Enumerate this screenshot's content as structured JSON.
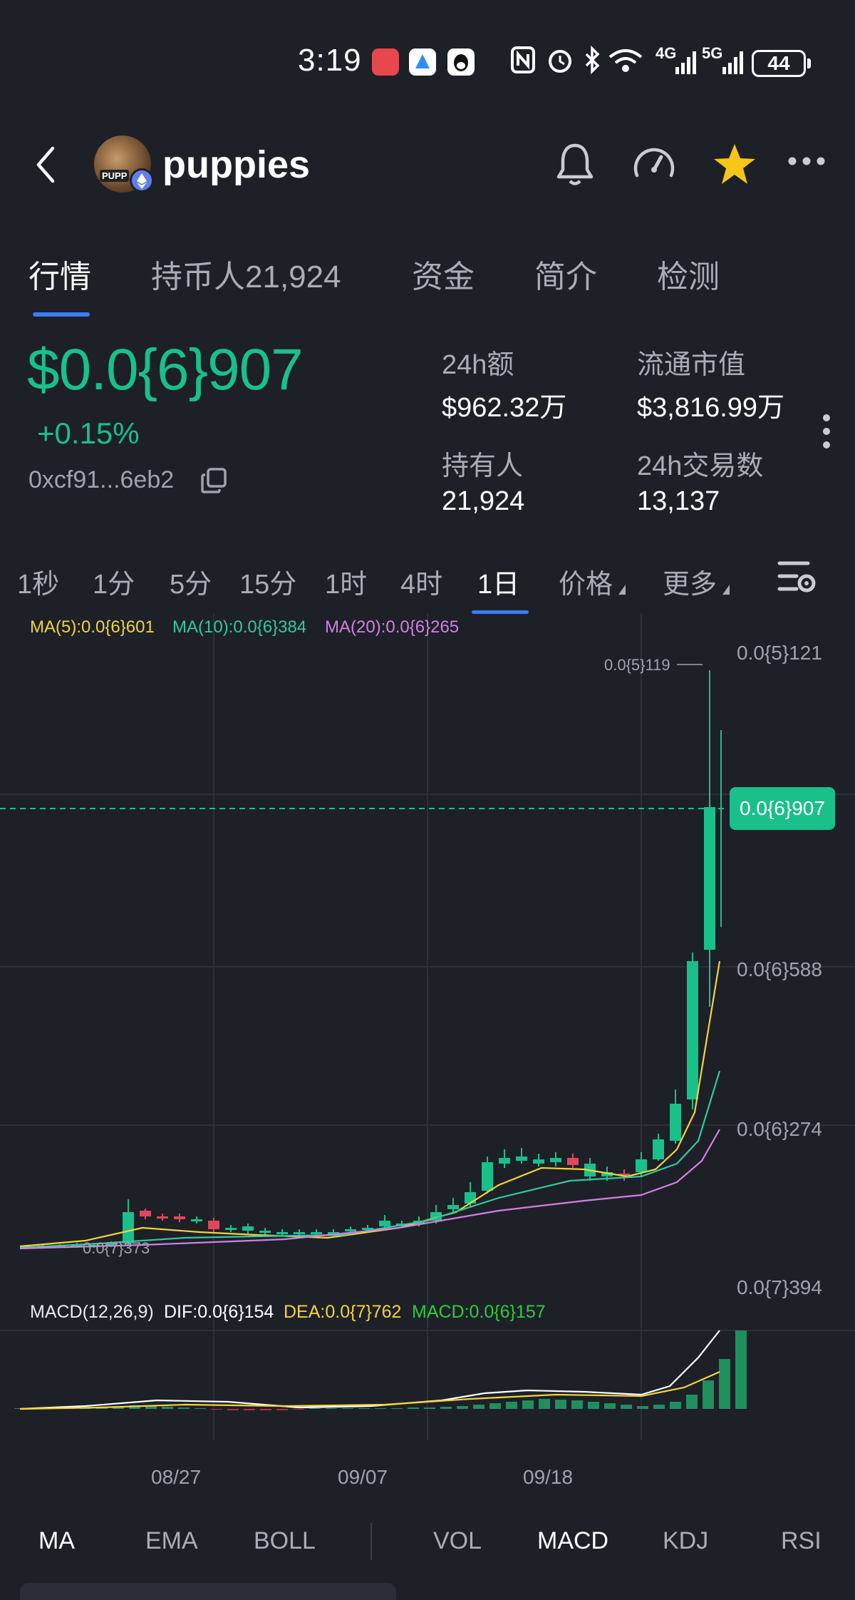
{
  "status_bar": {
    "time": "3:19",
    "network_4g": "4G",
    "network_5g": "5G",
    "battery": "44"
  },
  "header": {
    "token_name": "puppies",
    "avatar_text": "PUPP"
  },
  "tabs": [
    {
      "label": "行情",
      "active": true
    },
    {
      "label": "持币人21,924",
      "active": false
    },
    {
      "label": "资金",
      "active": false
    },
    {
      "label": "简介",
      "active": false
    },
    {
      "label": "检测",
      "active": false
    }
  ],
  "price_block": {
    "price": "$0.0{6}907",
    "change": "+0.15%",
    "address": "0xcf91...6eb2",
    "stats": [
      {
        "label": "24h额",
        "value": "$962.32万"
      },
      {
        "label": "流通市值",
        "value": "$3,816.99万"
      },
      {
        "label": "持有人",
        "value": "21,924"
      },
      {
        "label": "24h交易数",
        "value": "13,137"
      }
    ]
  },
  "intervals": [
    {
      "label": "1秒",
      "active": false
    },
    {
      "label": "1分",
      "active": false
    },
    {
      "label": "5分",
      "active": false
    },
    {
      "label": "15分",
      "active": false
    },
    {
      "label": "1时",
      "active": false
    },
    {
      "label": "4时",
      "active": false
    },
    {
      "label": "1日",
      "active": true
    },
    {
      "label": "价格",
      "active": false,
      "dropdown": true
    },
    {
      "label": "更多",
      "active": false,
      "dropdown": true
    }
  ],
  "chart": {
    "ma_legend": {
      "ma5": "MA(5):0.0{6}601",
      "ma10": "MA(10):0.0{6}384",
      "ma20": "MA(20):0.0{6}265"
    },
    "y_axis_labels": [
      "0.0{5}121",
      "0.0{6}588",
      "0.0{6}274",
      "0.0{7}394"
    ],
    "current_price_tag": "0.0{6}907",
    "high_marker": "0.0{5}119",
    "low_marker": "0.0{7}373",
    "macd_legend": {
      "params": "MACD(12,26,9)",
      "dif": "DIF:0.0{6}154",
      "dea": "DEA:0.0{7}762",
      "macd": "MACD:0.0{6}157"
    },
    "x_axis_labels": [
      "08/27",
      "09/07",
      "09/18"
    ],
    "colors": {
      "up": "#19c08a",
      "down": "#e0475c",
      "ma5": "#f2d43b",
      "ma10": "#30c9a0",
      "ma20": "#d67ee6",
      "dif": "#ffffff",
      "dea": "#f2d43b",
      "macd": "#19c08a"
    }
  },
  "indicator_tabs": [
    {
      "label": "MA",
      "active": true
    },
    {
      "label": "EMA",
      "active": false
    },
    {
      "label": "BOLL",
      "active": false
    },
    {
      "label": "VOL",
      "active": false
    },
    {
      "label": "MACD",
      "active": true
    },
    {
      "label": "KDJ",
      "active": false
    },
    {
      "label": "RSI",
      "active": false
    }
  ]
}
